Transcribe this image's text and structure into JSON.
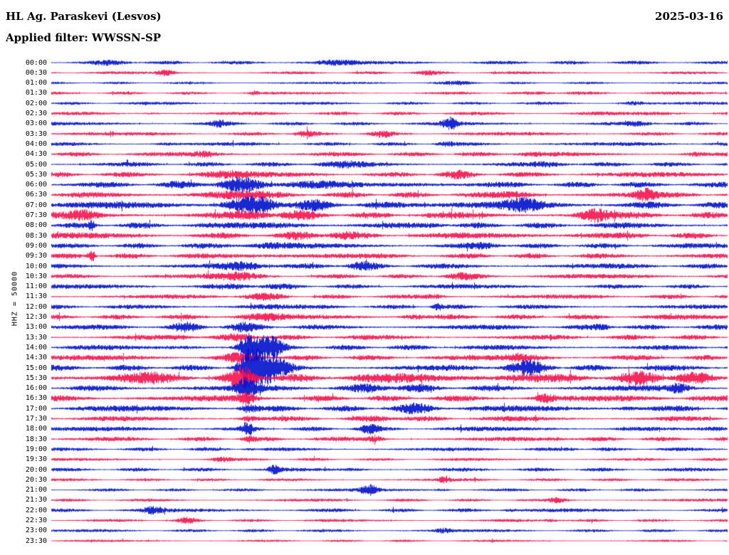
{
  "header": {
    "station": "HL Ag. Paraskevi (Lesvos)",
    "date": "2025-03-16",
    "filter": "Applied filter: WWSSN-SP"
  },
  "axis": {
    "scale_label": "HHZ = 50000"
  },
  "chart_data": {
    "type": "seismogram-helicorder",
    "title": "HL Ag. Paraskevi (Lesvos)",
    "date": "2025-03-16",
    "filter": "WWSSN-SP",
    "channel": "HHZ",
    "scale": 50000,
    "minutes_per_row": 30,
    "legend_position": "none",
    "grid": false,
    "trace_colors": {
      "blue": "#0010cd",
      "red": "#f7114d"
    },
    "rows": [
      {
        "label": "00:00",
        "color": "blue",
        "base": 2.4,
        "events": [
          [
            0.1,
            2,
            30
          ],
          [
            0.42,
            2,
            20
          ]
        ]
      },
      {
        "label": "00:30",
        "color": "red",
        "base": 2.0,
        "events": [
          [
            0.17,
            6.5,
            8
          ],
          [
            0.55,
            2,
            15
          ]
        ]
      },
      {
        "label": "01:00",
        "color": "blue",
        "base": 1.6,
        "events": [
          [
            0.6,
            1.5,
            30
          ]
        ]
      },
      {
        "label": "01:30",
        "color": "red",
        "base": 2.0,
        "events": [
          [
            0.3,
            4,
            4
          ],
          [
            0.75,
            2,
            20
          ]
        ]
      },
      {
        "label": "02:00",
        "color": "blue",
        "base": 2.0,
        "events": [
          [
            0.86,
            4.5,
            12
          ],
          [
            0.2,
            2,
            20
          ]
        ]
      },
      {
        "label": "02:30",
        "color": "red",
        "base": 2.4,
        "events": [
          [
            0.15,
            3,
            10
          ],
          [
            0.8,
            2.5,
            20
          ]
        ]
      },
      {
        "label": "03:00",
        "color": "blue",
        "base": 2.4,
        "events": [
          [
            0.59,
            6.5,
            8
          ],
          [
            0.25,
            3,
            10
          ],
          [
            0.88,
            4,
            15
          ]
        ]
      },
      {
        "label": "03:30",
        "color": "red",
        "base": 2.4,
        "events": [
          [
            0.37,
            5,
            12
          ],
          [
            0.49,
            3,
            10
          ]
        ]
      },
      {
        "label": "04:00",
        "color": "blue",
        "base": 2.5,
        "events": [
          [
            0.58,
            3,
            10
          ],
          [
            0.17,
            2.5,
            10
          ]
        ]
      },
      {
        "label": "04:30",
        "color": "red",
        "base": 3.0,
        "events": [
          [
            0.23,
            4,
            12
          ],
          [
            0.7,
            4,
            15
          ],
          [
            0.95,
            4,
            10
          ]
        ]
      },
      {
        "label": "05:00",
        "color": "blue",
        "base": 3.0,
        "events": [
          [
            0.42,
            3,
            30
          ],
          [
            0.75,
            3,
            20
          ]
        ]
      },
      {
        "label": "05:30",
        "color": "red",
        "base": 3.4,
        "events": [
          [
            0.25,
            4,
            30
          ],
          [
            0.6,
            3,
            20
          ]
        ]
      },
      {
        "label": "06:00",
        "color": "blue",
        "base": 3.8,
        "events": [
          [
            0.3,
            7,
            60
          ],
          [
            0.55,
            4,
            30
          ]
        ]
      },
      {
        "label": "06:30",
        "color": "red",
        "base": 4.0,
        "events": [
          [
            0.25,
            5,
            40
          ],
          [
            0.7,
            5,
            20
          ],
          [
            0.88,
            6,
            10
          ]
        ]
      },
      {
        "label": "07:00",
        "color": "blue",
        "base": 4.5,
        "events": [
          [
            0.32,
            9,
            50
          ],
          [
            0.7,
            7,
            20
          ],
          [
            0.55,
            5,
            20
          ]
        ]
      },
      {
        "label": "07:30",
        "color": "red",
        "base": 4.5,
        "events": [
          [
            0.8,
            11,
            15
          ],
          [
            0.33,
            7,
            30
          ],
          [
            0.05,
            6,
            15
          ]
        ]
      },
      {
        "label": "08:00",
        "color": "blue",
        "base": 4.0,
        "events": [
          [
            0.06,
            9,
            3
          ],
          [
            0.35,
            5,
            30
          ],
          [
            0.57,
            6,
            10
          ]
        ]
      },
      {
        "label": "08:30",
        "color": "red",
        "base": 4.0,
        "events": [
          [
            0.4,
            5,
            30
          ],
          [
            0.78,
            4,
            20
          ]
        ]
      },
      {
        "label": "09:00",
        "color": "blue",
        "base": 3.5,
        "events": [
          [
            0.3,
            4,
            30
          ],
          [
            0.65,
            3,
            20
          ]
        ]
      },
      {
        "label": "09:30",
        "color": "red",
        "base": 3.5,
        "events": [
          [
            0.061,
            23,
            3
          ],
          [
            0.3,
            5,
            25
          ]
        ]
      },
      {
        "label": "10:00",
        "color": "blue",
        "base": 3.5,
        "events": [
          [
            0.3,
            6,
            25
          ],
          [
            0.45,
            4,
            20
          ]
        ]
      },
      {
        "label": "10:30",
        "color": "red",
        "base": 3.0,
        "events": [
          [
            0.28,
            4,
            25
          ],
          [
            0.6,
            3,
            20
          ]
        ]
      },
      {
        "label": "11:00",
        "color": "blue",
        "base": 3.0,
        "events": [
          [
            0.3,
            4,
            25
          ]
        ]
      },
      {
        "label": "11:30",
        "color": "red",
        "base": 3.0,
        "events": [
          [
            0.57,
            4,
            10
          ],
          [
            0.3,
            3.5,
            25
          ]
        ]
      },
      {
        "label": "12:00",
        "color": "blue",
        "base": 3.0,
        "events": [
          [
            0.57,
            8,
            5
          ],
          [
            0.3,
            4,
            25
          ]
        ]
      },
      {
        "label": "12:30",
        "color": "red",
        "base": 3.4,
        "events": [
          [
            0.53,
            6,
            12
          ],
          [
            0.3,
            4,
            25
          ]
        ]
      },
      {
        "label": "13:00",
        "color": "blue",
        "base": 3.4,
        "events": [
          [
            0.82,
            5,
            10
          ],
          [
            0.29,
            4,
            25
          ],
          [
            0.2,
            4,
            15
          ]
        ]
      },
      {
        "label": "13:30",
        "color": "red",
        "base": 3.4,
        "events": [
          [
            0.2,
            5,
            12
          ],
          [
            0.29,
            4,
            20
          ]
        ]
      },
      {
        "label": "14:00",
        "color": "blue",
        "base": 3.5,
        "events": [
          [
            0.29,
            22,
            9
          ],
          [
            0.32,
            14,
            15
          ],
          [
            0.2,
            4,
            20
          ]
        ]
      },
      {
        "label": "14:30",
        "color": "red",
        "base": 3.5,
        "events": [
          [
            0.29,
            5,
            25
          ],
          [
            0.7,
            4,
            20
          ]
        ]
      },
      {
        "label": "15:00",
        "color": "blue",
        "base": 4.0,
        "events": [
          [
            0.29,
            28,
            11
          ],
          [
            0.32,
            17,
            20
          ],
          [
            0.7,
            7,
            30
          ]
        ]
      },
      {
        "label": "15:30",
        "color": "red",
        "base": 5.5,
        "events": [
          [
            0.29,
            14,
            15
          ],
          [
            0.1,
            6,
            40
          ],
          [
            0.6,
            6,
            60
          ],
          [
            0.9,
            6,
            40
          ]
        ]
      },
      {
        "label": "16:00",
        "color": "blue",
        "base": 4.0,
        "events": [
          [
            0.29,
            13,
            10
          ],
          [
            0.5,
            5,
            30
          ],
          [
            0.93,
            6,
            8
          ]
        ]
      },
      {
        "label": "16:30",
        "color": "red",
        "base": 4.0,
        "events": [
          [
            0.29,
            8,
            8
          ],
          [
            0.73,
            7,
            10
          ],
          [
            0.95,
            5,
            8
          ]
        ]
      },
      {
        "label": "17:00",
        "color": "blue",
        "base": 4.0,
        "events": [
          [
            0.29,
            9,
            8
          ],
          [
            0.85,
            7,
            10
          ],
          [
            0.55,
            5,
            20
          ]
        ]
      },
      {
        "label": "17:30",
        "color": "red",
        "base": 3.5,
        "events": [
          [
            0.5,
            5,
            15
          ],
          [
            0.29,
            6,
            8
          ]
        ]
      },
      {
        "label": "18:00",
        "color": "blue",
        "base": 3.0,
        "events": [
          [
            0.29,
            7,
            6
          ],
          [
            0.47,
            5,
            10
          ],
          [
            0.93,
            4,
            10
          ]
        ]
      },
      {
        "label": "18:30",
        "color": "red",
        "base": 3.0,
        "events": [
          [
            0.48,
            6,
            8
          ],
          [
            0.75,
            5,
            10
          ],
          [
            0.29,
            5,
            6
          ]
        ]
      },
      {
        "label": "19:00",
        "color": "blue",
        "base": 2.5,
        "events": [
          [
            0.29,
            5,
            5
          ],
          [
            0.77,
            4,
            8
          ]
        ]
      },
      {
        "label": "19:30",
        "color": "red",
        "base": 2.0,
        "events": [
          [
            0.25,
            3,
            10
          ]
        ]
      },
      {
        "label": "20:00",
        "color": "blue",
        "base": 2.5,
        "events": [
          [
            0.33,
            5,
            6
          ],
          [
            0.45,
            3,
            10
          ]
        ]
      },
      {
        "label": "20:30",
        "color": "red",
        "base": 2.0,
        "events": [
          [
            0.58,
            3,
            6
          ]
        ]
      },
      {
        "label": "21:00",
        "color": "blue",
        "base": 2.0,
        "events": [
          [
            0.47,
            6,
            8
          ],
          [
            0.58,
            3,
            8
          ]
        ]
      },
      {
        "label": "21:30",
        "color": "red",
        "base": 2.0,
        "events": [
          [
            0.75,
            3,
            8
          ]
        ]
      },
      {
        "label": "22:00",
        "color": "blue",
        "base": 2.5,
        "events": [
          [
            0.15,
            4,
            10
          ],
          [
            0.68,
            5,
            8
          ]
        ]
      },
      {
        "label": "22:30",
        "color": "red",
        "base": 2.0,
        "events": [
          [
            0.74,
            6,
            8
          ],
          [
            0.2,
            3,
            10
          ]
        ]
      },
      {
        "label": "23:00",
        "color": "blue",
        "base": 2.0,
        "events": [
          [
            0.58,
            3,
            8
          ]
        ]
      },
      {
        "label": "23:30",
        "color": "red",
        "base": 1.6,
        "events": []
      }
    ]
  }
}
